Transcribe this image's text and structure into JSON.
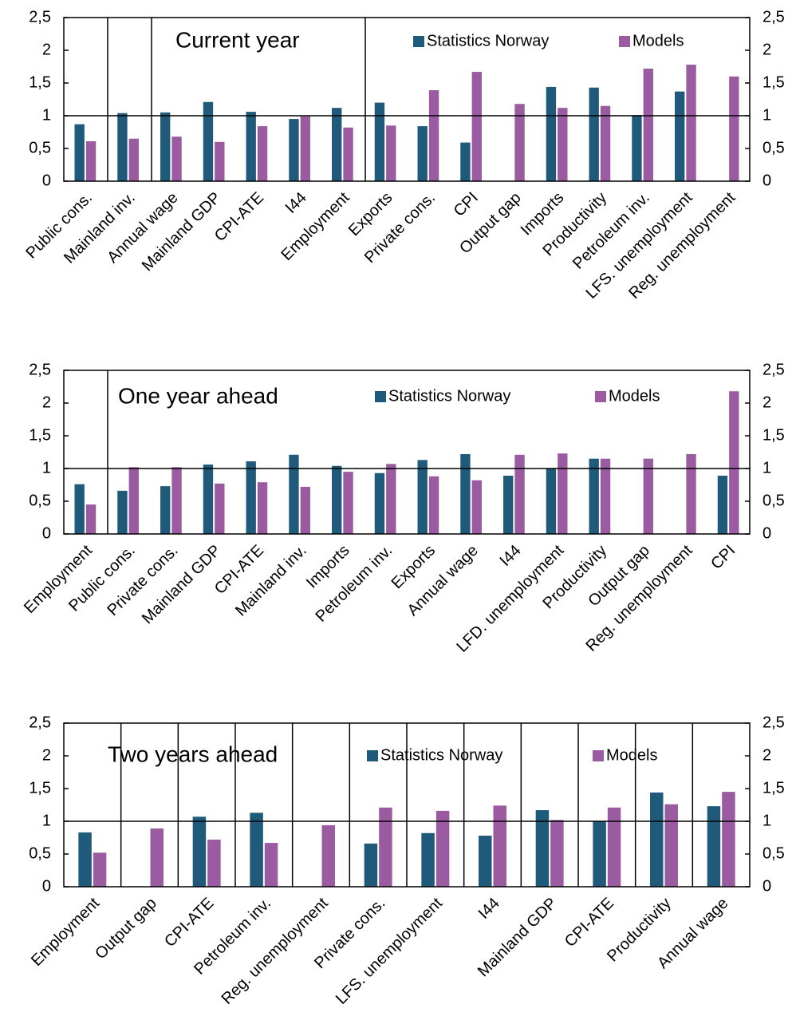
{
  "chart_data": [
    {
      "type": "bar",
      "title": "Current year",
      "categories": [
        "Public cons.",
        "Mainland inv.",
        "Annual wage",
        "Mainland GDP",
        "CPI-ATE",
        "I44",
        "Employment",
        "Exports",
        "Private cons.",
        "CPI",
        "Output gap",
        "Imports",
        "Productivity",
        "Petroleum inv.",
        "LFS. unemployment",
        "Reg. unemployment"
      ],
      "series": [
        {
          "name": "Statistics Norway",
          "color": "#1f5a7a",
          "values": [
            0.87,
            1.04,
            1.05,
            1.21,
            1.06,
            0.95,
            1.12,
            1.2,
            0.84,
            0.59,
            null,
            1.44,
            1.43,
            1.01,
            1.37,
            null
          ]
        },
        {
          "name": "Models",
          "color": "#9b5ba0",
          "values": [
            0.61,
            0.65,
            0.68,
            0.6,
            0.84,
            0.99,
            0.82,
            0.85,
            1.39,
            1.67,
            1.18,
            1.12,
            1.15,
            1.72,
            1.78,
            1.6
          ]
        }
      ],
      "ylim": [
        0,
        2.5
      ],
      "yticks": [
        0,
        {
          "value": 0.5,
          "label": "0,5"
        },
        1,
        {
          "value": 1.5,
          "label": "1,5"
        },
        2,
        {
          "value": 2.5,
          "label": "2,5"
        }
      ],
      "y2lim": [
        0,
        2.5
      ],
      "y2ticks": [
        0,
        {
          "value": 0.5,
          "label": "0,5"
        },
        1,
        {
          "value": 1.5,
          "label": "1,5"
        },
        2,
        {
          "value": 2.5,
          "label": "2,5"
        }
      ],
      "reference_line": 1,
      "grid": false
    },
    {
      "type": "bar",
      "title": "One year ahead",
      "categories": [
        "Employment",
        "Public cons.",
        "Private cons.",
        "Mainland GDP",
        "CPI-ATE",
        "Mainland inv.",
        "Imports",
        "Petroleum inv.",
        "Exports",
        "Annual wage",
        "I44",
        "LFD. unemployment",
        "Productivity",
        "Output gap",
        "Reg. unemployment",
        "CPI"
      ],
      "series": [
        {
          "name": "Statistics Norway",
          "color": "#1f5a7a",
          "values": [
            0.76,
            0.66,
            0.73,
            1.06,
            1.11,
            1.21,
            1.04,
            0.93,
            1.13,
            1.22,
            0.89,
            1.0,
            1.15,
            null,
            null,
            0.89
          ]
        },
        {
          "name": "Models",
          "color": "#9b5ba0",
          "values": [
            0.45,
            1.02,
            1.02,
            0.77,
            0.79,
            0.72,
            0.95,
            1.07,
            0.88,
            0.82,
            1.21,
            1.23,
            1.15,
            1.15,
            1.22,
            2.18
          ]
        }
      ],
      "ylim": [
        0,
        2.5
      ],
      "yticks": [
        0,
        {
          "value": 0.5,
          "label": "0,5"
        },
        1,
        {
          "value": 1.5,
          "label": "1,5"
        },
        2,
        {
          "value": 2.5,
          "label": "2,5"
        }
      ],
      "y2lim": [
        0,
        2.5
      ],
      "y2ticks": [
        0,
        {
          "value": 0.5,
          "label": "0,5"
        },
        1,
        {
          "value": 1.5,
          "label": "1,5"
        },
        2,
        {
          "value": 2.5,
          "label": "2,5"
        }
      ],
      "reference_line": 1,
      "grid": false
    },
    {
      "type": "bar",
      "title": "Two years ahead",
      "categories": [
        "Employment",
        "Output gap",
        "CPI-ATE",
        "Petroleum inv.",
        "Reg. unemployment",
        "Private cons.",
        "LFS. unemployment",
        "I44",
        "Mainland GDP",
        "CPI-ATE",
        "Productivity",
        "Annual wage"
      ],
      "series": [
        {
          "name": "Statistics Norway",
          "color": "#1f5a7a",
          "values": [
            0.83,
            null,
            1.07,
            1.13,
            null,
            0.66,
            0.82,
            0.78,
            1.17,
            1.0,
            1.44,
            1.23
          ]
        },
        {
          "name": "Models",
          "color": "#9b5ba0",
          "values": [
            0.52,
            0.89,
            0.72,
            0.67,
            0.94,
            1.21,
            1.16,
            1.24,
            1.02,
            1.21,
            1.26,
            1.45
          ]
        }
      ],
      "ylim": [
        0,
        2.5
      ],
      "yticks": [
        0,
        {
          "value": 0.5,
          "label": "0,5"
        },
        1,
        {
          "value": 1.5,
          "label": "1,5"
        },
        2,
        {
          "value": 2.5,
          "label": "2,5"
        }
      ],
      "y2lim": [
        0,
        2.5
      ],
      "y2ticks": [
        0,
        {
          "value": 0.5,
          "label": "0,5"
        },
        1,
        {
          "value": 1.5,
          "label": "1,5"
        },
        2,
        {
          "value": 2.5,
          "label": "2,5"
        }
      ],
      "reference_line": 1,
      "grid": false,
      "category_separators": true
    }
  ]
}
